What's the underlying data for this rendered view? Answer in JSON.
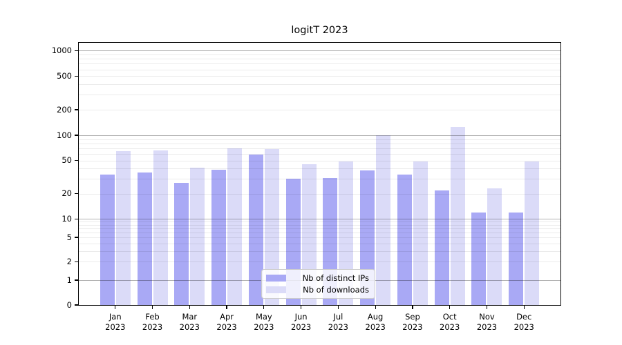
{
  "chart_data": {
    "type": "bar",
    "title": "logitT 2023",
    "categories": [
      "Jan",
      "Feb",
      "Mar",
      "Apr",
      "May",
      "Jun",
      "Jul",
      "Aug",
      "Sep",
      "Oct",
      "Nov",
      "Dec"
    ],
    "x_year_label": "2023",
    "series": [
      {
        "name": "Nb of distinct IPs",
        "color": "#a9a9f5",
        "values": [
          34,
          36,
          27,
          39,
          59,
          30,
          31,
          38,
          34,
          22,
          12,
          12
        ]
      },
      {
        "name": "Nb of downloads",
        "color": "#dbdbf8",
        "values": [
          65,
          66,
          41,
          70,
          69,
          45,
          49,
          100,
          49,
          125,
          23,
          49
        ]
      }
    ],
    "y_ticks": [
      0,
      1,
      2,
      5,
      10,
      20,
      50,
      100,
      200,
      500,
      1000
    ],
    "y_scale": "symlog",
    "ylim": [
      0,
      1000
    ],
    "grid": true,
    "legend_position": "lower center"
  },
  "colors": {
    "major_grid": "rgba(0,0,0,0.30)",
    "minor_grid": "rgba(0,0,0,0.08)",
    "axis": "#000000",
    "legend_border": "#cccccc"
  }
}
